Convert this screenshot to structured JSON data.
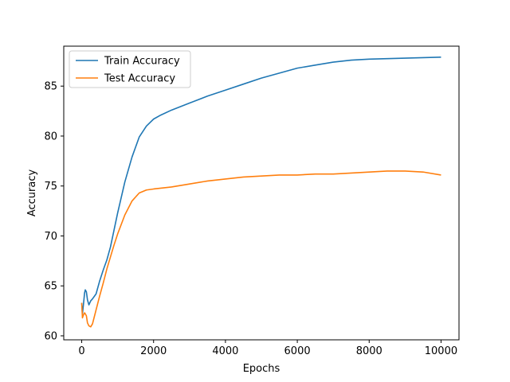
{
  "chart_data": {
    "type": "line",
    "title": "",
    "xlabel": "Epochs",
    "ylabel": "Accuracy",
    "xlim": [
      -500,
      10500
    ],
    "ylim": [
      59.6,
      89.0
    ],
    "xticks": [
      0,
      2000,
      4000,
      6000,
      8000,
      10000
    ],
    "yticks": [
      60,
      65,
      70,
      75,
      80,
      85
    ],
    "grid": false,
    "legend_position": "top-left",
    "series": [
      {
        "name": "Train Accuracy",
        "color": "#1f77b4",
        "x": [
          0,
          20,
          50,
          80,
          100,
          130,
          160,
          200,
          250,
          300,
          400,
          500,
          600,
          700,
          800,
          900,
          1000,
          1200,
          1400,
          1600,
          1800,
          2000,
          2200,
          2500,
          3000,
          3500,
          4000,
          4500,
          5000,
          5500,
          6000,
          6500,
          7000,
          7500,
          8000,
          8500,
          9000,
          9500,
          10000
        ],
        "y": [
          63.3,
          62.2,
          63.2,
          64.3,
          64.6,
          64.4,
          63.6,
          63.1,
          63.5,
          63.7,
          64.2,
          65.5,
          66.6,
          67.6,
          68.9,
          70.6,
          72.3,
          75.4,
          77.9,
          79.9,
          81.0,
          81.7,
          82.1,
          82.6,
          83.3,
          84.0,
          84.6,
          85.2,
          85.8,
          86.3,
          86.8,
          87.1,
          87.4,
          87.6,
          87.7,
          87.75,
          87.8,
          87.85,
          87.9
        ]
      },
      {
        "name": "Test Accuracy",
        "color": "#ff7f0e",
        "x": [
          0,
          20,
          50,
          80,
          100,
          130,
          160,
          200,
          250,
          300,
          350,
          400,
          500,
          600,
          700,
          800,
          900,
          1000,
          1200,
          1400,
          1600,
          1800,
          2000,
          2500,
          3000,
          3500,
          4000,
          4500,
          5000,
          5500,
          6000,
          6500,
          7000,
          7500,
          8000,
          8500,
          9000,
          9500,
          10000
        ],
        "y": [
          63.3,
          61.8,
          62.1,
          62.3,
          62.2,
          62.0,
          61.3,
          61.0,
          60.9,
          61.2,
          61.9,
          62.6,
          64.0,
          65.3,
          66.7,
          67.9,
          69.1,
          70.2,
          72.1,
          73.5,
          74.3,
          74.6,
          74.7,
          74.9,
          75.2,
          75.5,
          75.7,
          75.9,
          76.0,
          76.1,
          76.1,
          76.2,
          76.2,
          76.3,
          76.4,
          76.5,
          76.5,
          76.4,
          76.1
        ]
      }
    ]
  }
}
